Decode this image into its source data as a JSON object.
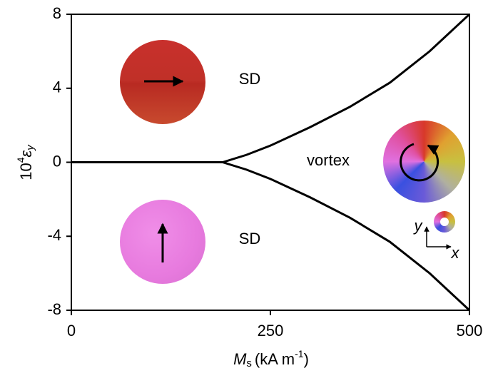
{
  "chart_data": {
    "type": "line",
    "x": [
      0,
      100,
      190,
      220,
      250,
      300,
      350,
      400,
      450,
      500
    ],
    "series": [
      {
        "color": "#000000",
        "values": [
          0,
          0,
          0,
          0.4,
          0.9,
          1.9,
          3.0,
          4.3,
          6.0,
          8.0
        ]
      },
      {
        "color": "#000000",
        "values": [
          0,
          0,
          0,
          -0.4,
          -0.9,
          -1.9,
          -3.0,
          -4.3,
          -6.0,
          -8.0
        ]
      }
    ],
    "xlim": [
      0,
      500
    ],
    "xticks": [
      0,
      250,
      500
    ],
    "ylim": [
      -8,
      8
    ],
    "yticks": [
      -8,
      -4,
      0,
      4,
      8
    ],
    "x_label": [
      "M",
      "s",
      "(kA m",
      "-1",
      ")"
    ],
    "y_label": [
      "10",
      "4",
      "ε",
      "y"
    ],
    "annotations": [
      "SD",
      "vortex",
      "SD",
      "y",
      "x"
    ]
  }
}
